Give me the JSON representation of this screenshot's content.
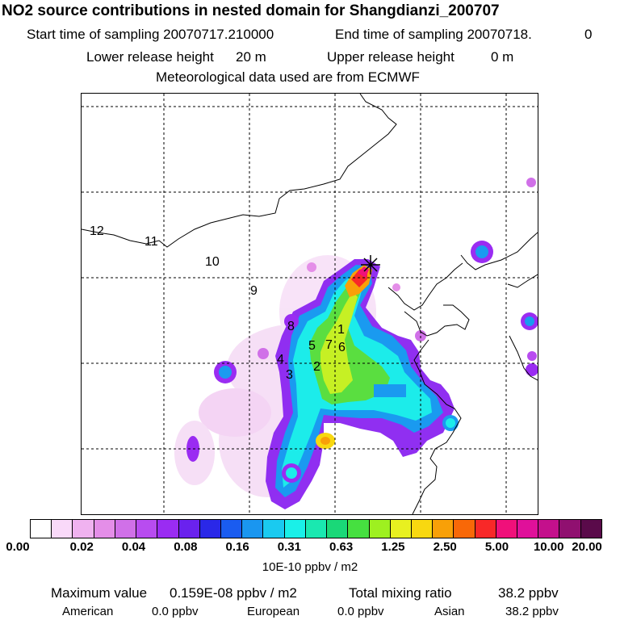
{
  "header": {
    "title": "NO2 source contributions in nested domain for Shangdianzi_200707",
    "start_label": "Start time of sampling 20070717.210000",
    "end_label": "End time of sampling 20070718.",
    "end_value": "0",
    "lower_label": "Lower release height",
    "lower_value": "20 m",
    "upper_label": "Upper release height",
    "upper_value": "0 m",
    "met_line": "Meteorological data used are from ECMWF"
  },
  "map": {
    "site_marker": "asterisk-icon",
    "labels": [
      "1",
      "2",
      "3",
      "4",
      "5",
      "6",
      "7",
      "8",
      "9",
      "10",
      "11",
      "12"
    ]
  },
  "colorbar": {
    "colors": [
      "#ffffff",
      "#f9d9f9",
      "#f0b2f0",
      "#e48ee8",
      "#d070e8",
      "#b84cf0",
      "#9a2cf2",
      "#6a22ee",
      "#2a28e8",
      "#1a5cf0",
      "#1a96f0",
      "#1acaf0",
      "#1af0e8",
      "#1ae8b0",
      "#1ad878",
      "#46e040",
      "#9ef020",
      "#e8f020",
      "#f8d810",
      "#f8a008",
      "#f86808",
      "#f82828",
      "#f0107a",
      "#e0109a",
      "#c4108c",
      "#901070",
      "#5a0a4a"
    ],
    "ticks": [
      "0.00",
      "0.02",
      "0.04",
      "0.08",
      "0.16",
      "0.31",
      "0.63",
      "1.25",
      "2.50",
      "5.00",
      "10.00",
      "20.00"
    ],
    "units": "10E-10 ppbv / m2"
  },
  "footer": {
    "max_label": "Maximum value",
    "max_value": "0.159E-08 ppbv / m2",
    "total_label": "Total mixing ratio",
    "total_value": "38.2 ppbv",
    "american_label": "American",
    "american_value": "0.0 ppbv",
    "european_label": "European",
    "european_value": "0.0 ppbv",
    "asian_label": "Asian",
    "asian_value": "38.2 ppbv"
  }
}
